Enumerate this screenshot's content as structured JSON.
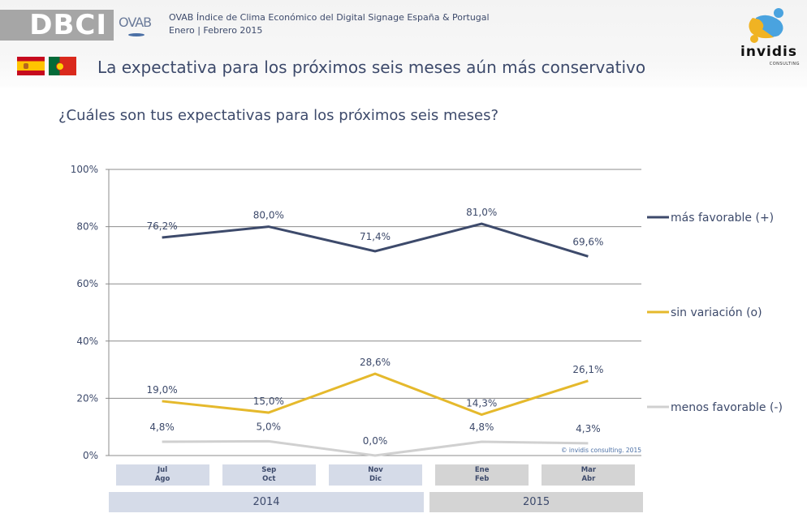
{
  "header": {
    "brand": "DBCI",
    "partner_logo": "OVAB",
    "subtitle_line1": "OVAB Índice de Clima Económico del Digital Signage España & Portugal",
    "subtitle_line2": "Enero | Febrero 2015",
    "flags": [
      "spain-flag",
      "portugal-flag"
    ],
    "slide_title": "La expectativa para los próximos seis meses aún más conservativo",
    "logo_name": "invidis",
    "logo_sub": "CONSULTING"
  },
  "question": "¿Cuáles son tus expectativas para los próximos seis meses?",
  "colors": {
    "mas_favorable": "#3d4a6b",
    "sin_variacion": "#e5b92c",
    "menos_favorable": "#d0d0d0",
    "year_2014_bg": "#d5dbe8",
    "year_2015_bg": "#d4d4d4"
  },
  "chart_data": {
    "type": "line",
    "title": "¿Cuáles son tus expectativas para los próximos seis meses?",
    "xlabel": "",
    "ylabel": "",
    "ylim": [
      0,
      100
    ],
    "yticks": [
      "0%",
      "20%",
      "40%",
      "60%",
      "80%",
      "100%"
    ],
    "grid": true,
    "legend_position": "right",
    "categories": [
      "Jul Ago 2014",
      "Sep Oct 2014",
      "Nov Dic 2014",
      "Ene Feb 2015",
      "Mar Abr 2015"
    ],
    "category_labels": [
      {
        "line1": "Jul",
        "line2": "Ago",
        "year": "2014"
      },
      {
        "line1": "Sep",
        "line2": "Oct",
        "year": "2014"
      },
      {
        "line1": "Nov",
        "line2": "Dic",
        "year": "2014"
      },
      {
        "line1": "Ene",
        "line2": "Feb",
        "year": "2015"
      },
      {
        "line1": "Mar",
        "line2": "Abr",
        "year": "2015"
      }
    ],
    "years": [
      {
        "label": "2014",
        "span": 3
      },
      {
        "label": "2015",
        "span": 2
      }
    ],
    "series": [
      {
        "name": "más favorable (+)",
        "values": [
          76.2,
          80.0,
          71.4,
          81.0,
          69.6
        ],
        "labels": [
          "76,2%",
          "80,0%",
          "71,4%",
          "81,0%",
          "69,6%"
        ]
      },
      {
        "name": "sin variación (o)",
        "values": [
          19.0,
          15.0,
          28.6,
          14.3,
          26.1
        ],
        "labels": [
          "19,0%",
          "15,0%",
          "28,6%",
          "14,3%",
          "26,1%"
        ]
      },
      {
        "name": "menos favorable (-)",
        "values": [
          4.8,
          5.0,
          0.0,
          4.8,
          4.3
        ],
        "labels": [
          "4,8%",
          "5,0%",
          "0,0%",
          "4,8%",
          "4,3%"
        ]
      }
    ],
    "annotation": "© invidis consulting. 2015"
  }
}
